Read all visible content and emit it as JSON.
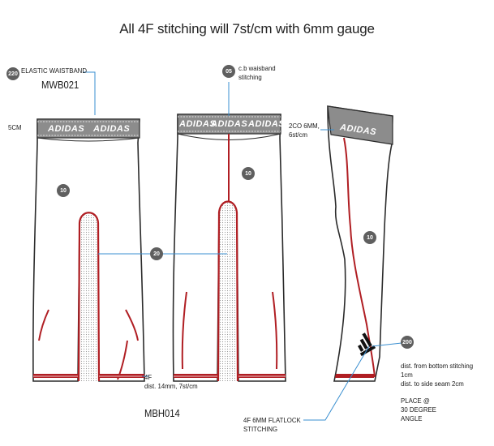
{
  "title": "All 4F stitching will 7st/cm with 6mm gauge",
  "brand_text": "ADIDAS",
  "badges": {
    "waistband_220": "220",
    "cb_seam_05": "05",
    "front_panel_10": "10",
    "back_panel_10": "10",
    "side_panel_10": "10",
    "gusset_20": "20",
    "logo_200": "200"
  },
  "labels": {
    "elastic_waistband": "ELASTIC WAISTBAND",
    "waistband_code": "MWB021",
    "waistband_width": "5CM",
    "cb_waistband": "c.b waisband\nstitching",
    "side_waistband": "2CO 6MM,\n6st/cm",
    "hem_4f": "4F\ndist. 14mm, 7st/cm",
    "body_code": "MBH014",
    "flatlock": "4F 6MM FLATLOCK\nSTITCHING",
    "logo_distance": "dist. from bottom stitching 1cm\ndist. to side seam 2cm",
    "logo_place": "PLACE @\n30 DEGREE\nANGLE"
  },
  "colors": {
    "seam_red": "#b01e23",
    "waistband_gray": "#8c8c8c",
    "outline": "#2b2b2b",
    "leader_blue": "#3a8fd0",
    "badge_gray": "#5f5f5f"
  }
}
